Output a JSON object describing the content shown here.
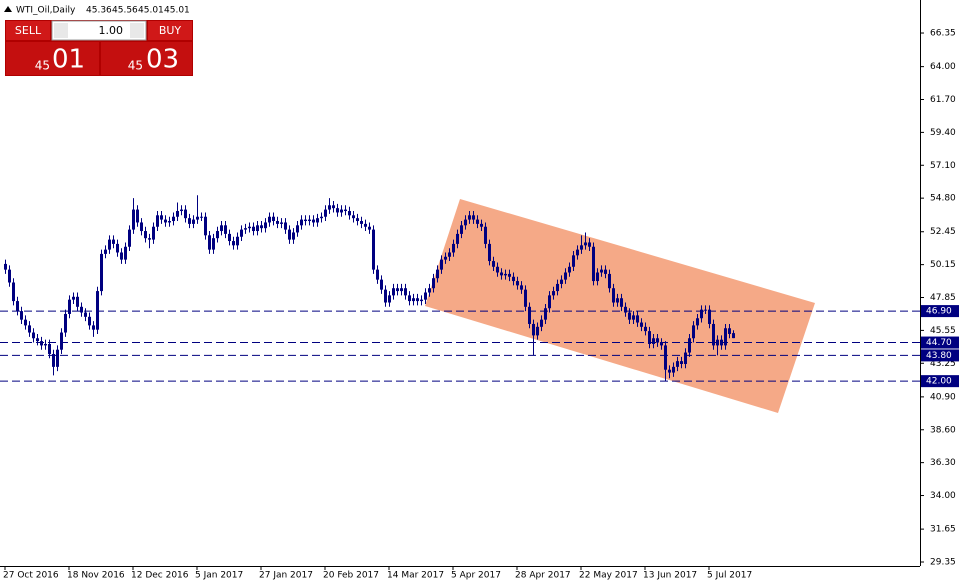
{
  "chart_data": {
    "type": "candlestick",
    "symbol": "WTI_Oil,Daily",
    "color": "#000080",
    "categories": [
      "27 Oct 2016",
      null,
      null,
      null,
      null,
      null,
      null,
      null,
      null,
      null,
      null,
      null,
      null,
      null,
      null,
      null,
      "18 Nov 2016",
      null,
      null,
      null,
      null,
      null,
      null,
      null,
      null,
      null,
      null,
      null,
      null,
      null,
      null,
      null,
      "12 Dec 2016",
      null,
      null,
      null,
      null,
      null,
      null,
      null,
      null,
      null,
      null,
      null,
      null,
      null,
      null,
      null,
      "5 Jan 2017",
      null,
      null,
      null,
      null,
      null,
      null,
      null,
      null,
      null,
      null,
      null,
      null,
      null,
      null,
      null,
      "27 Jan 2017",
      null,
      null,
      null,
      null,
      null,
      null,
      null,
      null,
      null,
      null,
      null,
      null,
      null,
      null,
      null,
      "20 Feb 2017",
      null,
      null,
      null,
      null,
      null,
      null,
      null,
      null,
      null,
      null,
      null,
      null,
      null,
      null,
      null,
      "14 Mar 2017",
      null,
      null,
      null,
      null,
      null,
      null,
      null,
      null,
      null,
      null,
      null,
      null,
      null,
      null,
      null,
      "5 Apr 2017",
      null,
      null,
      null,
      null,
      null,
      null,
      null,
      null,
      null,
      null,
      null,
      null,
      null,
      null,
      null,
      "28 Apr 2017",
      null,
      null,
      null,
      null,
      null,
      null,
      null,
      null,
      null,
      null,
      null,
      null,
      null,
      null,
      null,
      "22 May 2017",
      null,
      null,
      null,
      null,
      null,
      null,
      null,
      null,
      null,
      null,
      null,
      null,
      null,
      null,
      null,
      "13 Jun 2017",
      null,
      null,
      null,
      null,
      null,
      null,
      null,
      null,
      null,
      null,
      null,
      null,
      null,
      null,
      null,
      "5 Jul 2017",
      null,
      null,
      null,
      null,
      null,
      null
    ],
    "open": [
      50.2,
      49.8,
      48.9,
      47.6,
      46.9,
      46.3,
      45.9,
      45.4,
      45.0,
      44.8,
      44.5,
      44.6,
      43.9,
      43.0,
      44.2,
      45.4,
      46.7,
      47.7,
      47.9,
      47.2,
      46.8,
      46.5,
      45.9,
      45.6,
      48.3,
      50.9,
      51.2,
      51.9,
      51.6,
      51.0,
      50.5,
      51.4,
      52.6,
      54.0,
      53.1,
      52.5,
      52.0,
      51.9,
      52.8,
      53.6,
      53.3,
      53.1,
      53.2,
      53.5,
      53.9,
      54.0,
      53.4,
      53.0,
      53.3,
      53.5,
      53.5,
      52.2,
      51.2,
      52.0,
      52.5,
      52.9,
      52.3,
      51.8,
      51.5,
      52.1,
      52.6,
      52.7,
      52.8,
      52.5,
      52.9,
      52.7,
      53.1,
      53.5,
      53.2,
      53.0,
      53.1,
      52.6,
      51.9,
      52.4,
      52.9,
      53.3,
      53.2,
      53.3,
      53.1,
      53.4,
      53.5,
      54.0,
      54.3,
      54.1,
      53.8,
      54.0,
      53.9,
      53.6,
      53.4,
      53.2,
      53.0,
      52.8,
      52.6,
      49.8,
      49.1,
      48.4,
      47.5,
      48.0,
      48.5,
      48.3,
      48.5,
      48.0,
      47.6,
      47.8,
      47.6,
      47.7,
      48.2,
      48.5,
      49.2,
      49.8,
      50.5,
      50.7,
      51.0,
      51.6,
      52.3,
      52.9,
      53.3,
      53.6,
      53.3,
      53.0,
      52.8,
      51.6,
      50.4,
      50.0,
      49.6,
      49.4,
      49.5,
      49.3,
      49.0,
      48.7,
      48.4,
      47.2,
      46.0,
      45.2,
      45.8,
      46.3,
      47.1,
      48.0,
      48.3,
      48.8,
      49.1,
      49.6,
      50.0,
      50.8,
      51.2,
      51.5,
      51.7,
      51.4,
      49.0,
      49.6,
      49.8,
      49.5,
      48.5,
      47.5,
      47.8,
      47.2,
      46.8,
      46.3,
      46.6,
      46.1,
      45.8,
      45.5,
      44.6,
      45.0,
      44.7,
      44.5,
      42.8,
      42.6,
      43.0,
      43.4,
      43.2,
      44.0,
      45.0,
      45.9,
      46.4,
      47.0,
      47.0,
      46.0,
      44.5,
      44.9,
      44.5,
      45.7,
      45.36
    ],
    "high": [
      50.5,
      50.1,
      49.2,
      47.9,
      47.2,
      46.6,
      46.2,
      45.7,
      45.3,
      45.1,
      44.9,
      44.9,
      44.2,
      44.5,
      45.7,
      47.0,
      48.0,
      48.2,
      48.2,
      47.5,
      47.1,
      46.8,
      46.2,
      48.6,
      51.2,
      51.5,
      52.2,
      52.2,
      51.9,
      51.3,
      51.7,
      52.9,
      54.8,
      54.3,
      53.4,
      52.8,
      52.3,
      53.1,
      53.9,
      53.9,
      53.6,
      53.5,
      53.8,
      54.5,
      54.3,
      54.3,
      53.7,
      53.6,
      55.0,
      53.8,
      53.8,
      52.5,
      52.3,
      52.8,
      53.2,
      53.2,
      52.6,
      52.1,
      52.4,
      52.9,
      53.0,
      53.1,
      53.1,
      53.2,
      53.2,
      53.4,
      53.8,
      53.8,
      53.5,
      53.4,
      53.4,
      52.9,
      52.7,
      53.2,
      53.6,
      53.6,
      53.6,
      53.6,
      53.7,
      53.8,
      54.3,
      54.8,
      54.6,
      54.4,
      54.3,
      54.3,
      54.2,
      53.9,
      53.7,
      53.5,
      53.3,
      53.1,
      52.9,
      50.1,
      49.4,
      48.7,
      48.3,
      48.8,
      48.8,
      48.8,
      48.8,
      48.3,
      48.1,
      48.1,
      48.0,
      48.5,
      48.8,
      49.5,
      50.1,
      50.8,
      51.0,
      51.3,
      51.9,
      52.6,
      53.2,
      53.6,
      53.9,
      53.9,
      53.6,
      53.3,
      53.1,
      51.9,
      50.7,
      50.3,
      49.9,
      49.8,
      49.8,
      49.6,
      49.3,
      49.0,
      48.7,
      47.5,
      46.3,
      46.1,
      46.6,
      47.4,
      48.3,
      48.6,
      49.1,
      49.4,
      49.9,
      50.3,
      51.1,
      51.5,
      52.2,
      52.4,
      52.0,
      51.7,
      49.9,
      50.1,
      50.1,
      49.8,
      48.8,
      48.1,
      48.1,
      47.5,
      47.1,
      46.9,
      46.9,
      46.4,
      46.1,
      45.8,
      45.3,
      45.3,
      45.0,
      44.8,
      43.1,
      43.3,
      43.7,
      43.7,
      44.3,
      45.3,
      46.2,
      46.7,
      47.3,
      47.3,
      47.3,
      46.3,
      45.2,
      45.2,
      46.0,
      46.0,
      45.56
    ],
    "low": [
      49.5,
      48.6,
      47.3,
      46.6,
      46.0,
      45.6,
      45.1,
      44.7,
      44.5,
      44.2,
      44.2,
      43.6,
      42.4,
      42.7,
      43.9,
      45.1,
      46.4,
      47.4,
      46.9,
      46.5,
      46.2,
      45.6,
      45.1,
      45.3,
      48.0,
      50.6,
      50.9,
      51.3,
      50.7,
      50.2,
      50.2,
      51.1,
      52.3,
      52.8,
      52.2,
      51.7,
      51.3,
      51.6,
      52.5,
      53.0,
      52.8,
      52.8,
      52.9,
      53.2,
      53.6,
      53.1,
      52.7,
      52.7,
      53.0,
      53.2,
      51.9,
      50.9,
      50.9,
      51.7,
      52.2,
      52.0,
      51.5,
      51.2,
      51.2,
      51.8,
      52.3,
      52.4,
      52.2,
      52.2,
      52.4,
      52.4,
      52.8,
      52.9,
      52.7,
      52.7,
      52.3,
      51.6,
      51.6,
      52.1,
      52.6,
      52.9,
      52.9,
      52.8,
      52.8,
      53.1,
      53.2,
      53.7,
      53.8,
      53.5,
      53.5,
      53.6,
      53.3,
      53.1,
      52.9,
      52.7,
      52.5,
      52.3,
      49.5,
      48.8,
      48.1,
      47.2,
      47.2,
      47.7,
      48.0,
      48.0,
      47.7,
      47.3,
      47.3,
      47.3,
      47.3,
      47.4,
      47.9,
      48.2,
      48.9,
      49.5,
      50.2,
      50.4,
      50.7,
      51.3,
      52.0,
      52.6,
      53.0,
      53.0,
      52.7,
      52.5,
      51.3,
      50.1,
      49.7,
      49.3,
      49.1,
      49.1,
      49.0,
      48.7,
      48.4,
      48.1,
      46.9,
      45.7,
      43.8,
      44.9,
      45.5,
      46.0,
      46.8,
      47.7,
      48.0,
      48.5,
      48.8,
      49.3,
      49.7,
      50.5,
      50.9,
      51.2,
      51.1,
      48.7,
      48.7,
      49.3,
      49.2,
      48.2,
      47.2,
      47.2,
      46.9,
      46.5,
      46.0,
      46.0,
      45.8,
      45.5,
      45.2,
      44.3,
      44.3,
      44.4,
      44.2,
      42.0,
      42.2,
      42.3,
      42.7,
      42.9,
      42.9,
      43.7,
      44.7,
      45.6,
      46.1,
      46.7,
      45.7,
      44.2,
      43.8,
      44.2,
      44.2,
      45.0,
      45.01
    ],
    "close": [
      49.8,
      48.9,
      47.6,
      46.9,
      46.3,
      45.9,
      45.4,
      45.0,
      44.8,
      44.5,
      44.6,
      43.9,
      43.0,
      44.2,
      45.4,
      46.7,
      47.7,
      47.9,
      47.2,
      46.8,
      46.5,
      45.9,
      45.6,
      48.3,
      50.9,
      51.2,
      51.9,
      51.6,
      51.0,
      50.5,
      51.4,
      52.6,
      54.0,
      53.1,
      52.5,
      52.0,
      51.9,
      52.8,
      53.6,
      53.3,
      53.1,
      53.2,
      53.5,
      53.9,
      54.0,
      53.4,
      53.0,
      53.3,
      53.5,
      53.5,
      52.2,
      51.2,
      52.0,
      52.5,
      52.9,
      52.3,
      51.8,
      51.5,
      52.1,
      52.6,
      52.7,
      52.8,
      52.5,
      52.9,
      52.7,
      53.1,
      53.5,
      53.2,
      53.0,
      53.1,
      52.6,
      51.9,
      52.4,
      52.9,
      53.3,
      53.2,
      53.3,
      53.1,
      53.4,
      53.5,
      54.0,
      54.3,
      54.1,
      53.8,
      54.0,
      53.9,
      53.6,
      53.4,
      53.2,
      53.0,
      52.8,
      52.6,
      49.8,
      49.1,
      48.4,
      47.5,
      48.0,
      48.5,
      48.3,
      48.5,
      48.0,
      47.6,
      47.8,
      47.6,
      47.7,
      48.2,
      48.5,
      49.2,
      49.8,
      50.5,
      50.7,
      51.0,
      51.6,
      52.3,
      52.9,
      53.3,
      53.6,
      53.3,
      53.0,
      52.8,
      51.6,
      50.4,
      50.0,
      49.6,
      49.4,
      49.5,
      49.3,
      49.0,
      48.7,
      48.4,
      47.2,
      46.0,
      45.2,
      45.8,
      46.3,
      47.1,
      48.0,
      48.3,
      48.8,
      49.1,
      49.6,
      50.0,
      50.8,
      51.2,
      51.5,
      51.7,
      51.4,
      49.0,
      49.6,
      49.8,
      49.5,
      48.5,
      47.5,
      47.8,
      47.2,
      46.8,
      46.3,
      46.6,
      46.1,
      45.8,
      45.5,
      44.6,
      45.0,
      44.7,
      44.5,
      42.8,
      42.6,
      43.0,
      43.4,
      43.2,
      44.0,
      45.0,
      45.9,
      46.4,
      47.0,
      47.0,
      46.0,
      44.5,
      44.9,
      44.5,
      45.7,
      45.3,
      45.01
    ],
    "ylim": [
      29.07,
      68.66
    ],
    "yticks": [
      66.35,
      {
        "value": 64,
        "label": "64.00"
      },
      {
        "value": 61.7,
        "label": "61.70"
      },
      {
        "value": 59.4,
        "label": "59.40"
      },
      {
        "value": 57.1,
        "label": "57.10"
      },
      {
        "value": 54.8,
        "label": "54.80"
      },
      52.45,
      50.15,
      47.85,
      45.55,
      43.25,
      {
        "value": 40.9,
        "label": "40.90"
      },
      {
        "value": 38.6,
        "label": "38.60"
      },
      {
        "value": 36.3,
        "label": "36.30"
      },
      {
        "value": 34,
        "label": "34.00"
      },
      31.65,
      29.35
    ],
    "price_lines": [
      {
        "value": 46.9,
        "label": "46.90"
      },
      {
        "value": 44.7,
        "label": "44.70"
      },
      {
        "value": 43.8,
        "label": "43.80"
      },
      {
        "value": 42,
        "label": "42.00"
      }
    ],
    "grid": false
  },
  "trade_panel": {
    "sell": "SELL",
    "lot": "1.00",
    "buy": "BUY",
    "bid_big": "45",
    "bid_small": "01",
    "ask_big": "45",
    "ask_small": "03"
  }
}
